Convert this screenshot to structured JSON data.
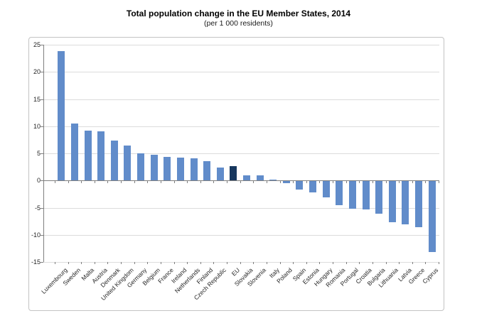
{
  "title": "Total population change in the EU Member States, 2014",
  "subtitle": "(per 1 000 residents)",
  "chart_data": {
    "type": "bar",
    "title": "Total population change in the EU Member States, 2014",
    "subtitle": "(per 1 000 residents)",
    "xlabel": "",
    "ylabel": "",
    "ylim": [
      -15,
      25
    ],
    "yticks": [
      25,
      20,
      15,
      10,
      5,
      0,
      -5,
      -10,
      -15
    ],
    "grid": true,
    "legend": "none",
    "categories": [
      "Luxembourg",
      "Sweden",
      "Malta",
      "Austria",
      "Denmark",
      "United Kingdom",
      "Germany",
      "Belgium",
      "France",
      "Ireland",
      "Netherlands",
      "Finland",
      "Czech Republic",
      "EU",
      "Slovakia",
      "Slovenia",
      "Italy",
      "Poland",
      "Spain",
      "Estonia",
      "Hungary",
      "Romania",
      "Portugal",
      "Croatia",
      "Bulgaria",
      "Lithuania",
      "Latvia",
      "Greece",
      "Cyprus"
    ],
    "values": [
      23.8,
      10.5,
      9.2,
      9.0,
      7.4,
      6.4,
      5.0,
      4.7,
      4.4,
      4.2,
      4.1,
      3.5,
      2.4,
      2.7,
      1.0,
      0.9,
      0.2,
      -0.4,
      -1.6,
      -2.0,
      -3.0,
      -4.4,
      -5.1,
      -5.2,
      -6.0,
      -7.6,
      -7.9,
      -8.4,
      -13.0
    ],
    "highlight_category": "EU",
    "colors": {
      "bar_default": "#618cca",
      "bar_highlight": "#17375e",
      "gridline": "#dcdcdc",
      "axis_line": "#7f7f7f",
      "label_text": "#262626",
      "frame_border": "#c3c3c3"
    }
  }
}
